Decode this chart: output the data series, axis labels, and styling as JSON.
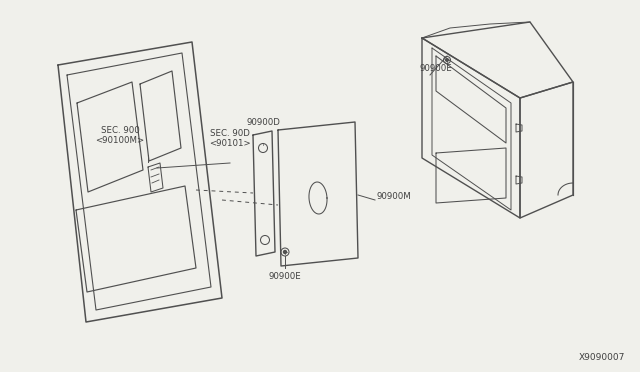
{
  "bg_color": "#f0f0eb",
  "line_color": "#505050",
  "text_color": "#404040",
  "diagram_id": "X9090007",
  "label_sec900": "SEC. 900\n<90100M>",
  "label_sec90d": "SEC. 90D\n<90101>",
  "label_90900D": "90900D",
  "label_90900E_top": "90900E",
  "label_90900M": "90900M",
  "label_90900E_bot": "90900E"
}
